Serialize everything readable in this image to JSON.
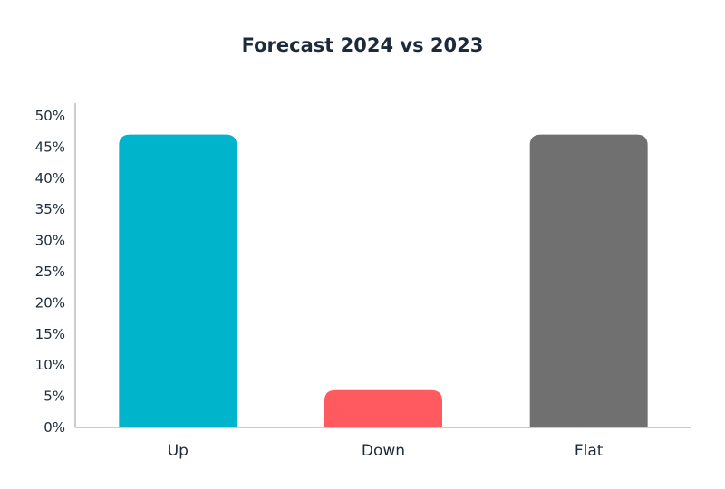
{
  "chart_data": {
    "type": "bar",
    "title": "Forecast 2024 vs 2023",
    "xlabel": "",
    "ylabel": "",
    "categories": [
      "Up",
      "Down",
      "Flat"
    ],
    "values": [
      47,
      6,
      47
    ],
    "colors": [
      "#00b4cc",
      "#ff5a5f",
      "#6f706f"
    ],
    "ylim": [
      0,
      50
    ],
    "yticks": [
      0,
      5,
      10,
      15,
      20,
      25,
      30,
      35,
      40,
      45,
      50
    ],
    "ytick_labels": [
      "0%",
      "5%",
      "10%",
      "15%",
      "20%",
      "25%",
      "30%",
      "35%",
      "40%",
      "45%",
      "50%"
    ],
    "grid": false,
    "legend": "none"
  }
}
